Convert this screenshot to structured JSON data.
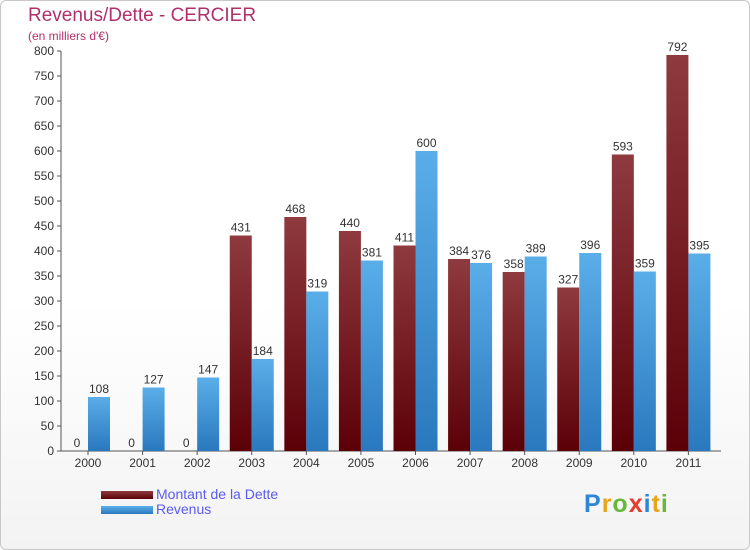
{
  "header": {
    "title": "Revenus/Dette - CERCIER",
    "subtitle": "(en milliers d'€)"
  },
  "legend": {
    "debt_label": "Montant de la Dette",
    "revenue_label": "Revenus"
  },
  "brand": {
    "text": "Proxiti"
  },
  "colors": {
    "debt_top": "#8e3a3e",
    "debt_bottom": "#5c0008",
    "revenue_top": "#5aaee8",
    "revenue_bottom": "#2a78be",
    "title": "#b0306a",
    "legend_text": "#5a5aee"
  },
  "chart_data": {
    "type": "bar",
    "title": "Revenus/Dette - CERCIER",
    "subtitle": "(en milliers d'€)",
    "categories": [
      "2000",
      "2001",
      "2002",
      "2003",
      "2004",
      "2005",
      "2006",
      "2007",
      "2008",
      "2009",
      "2010",
      "2011"
    ],
    "series": [
      {
        "name": "Montant de la Dette",
        "values": [
          0,
          0,
          0,
          431,
          468,
          440,
          411,
          384,
          358,
          327,
          593,
          792
        ]
      },
      {
        "name": "Revenus",
        "values": [
          108,
          127,
          147,
          184,
          319,
          381,
          600,
          376,
          389,
          396,
          359,
          395
        ]
      }
    ],
    "ylim": [
      0,
      800
    ],
    "yticks": [
      0,
      50,
      100,
      150,
      200,
      250,
      300,
      350,
      400,
      450,
      500,
      550,
      600,
      650,
      700,
      750,
      800
    ],
    "grid": false,
    "legend_position": "bottom-left"
  }
}
